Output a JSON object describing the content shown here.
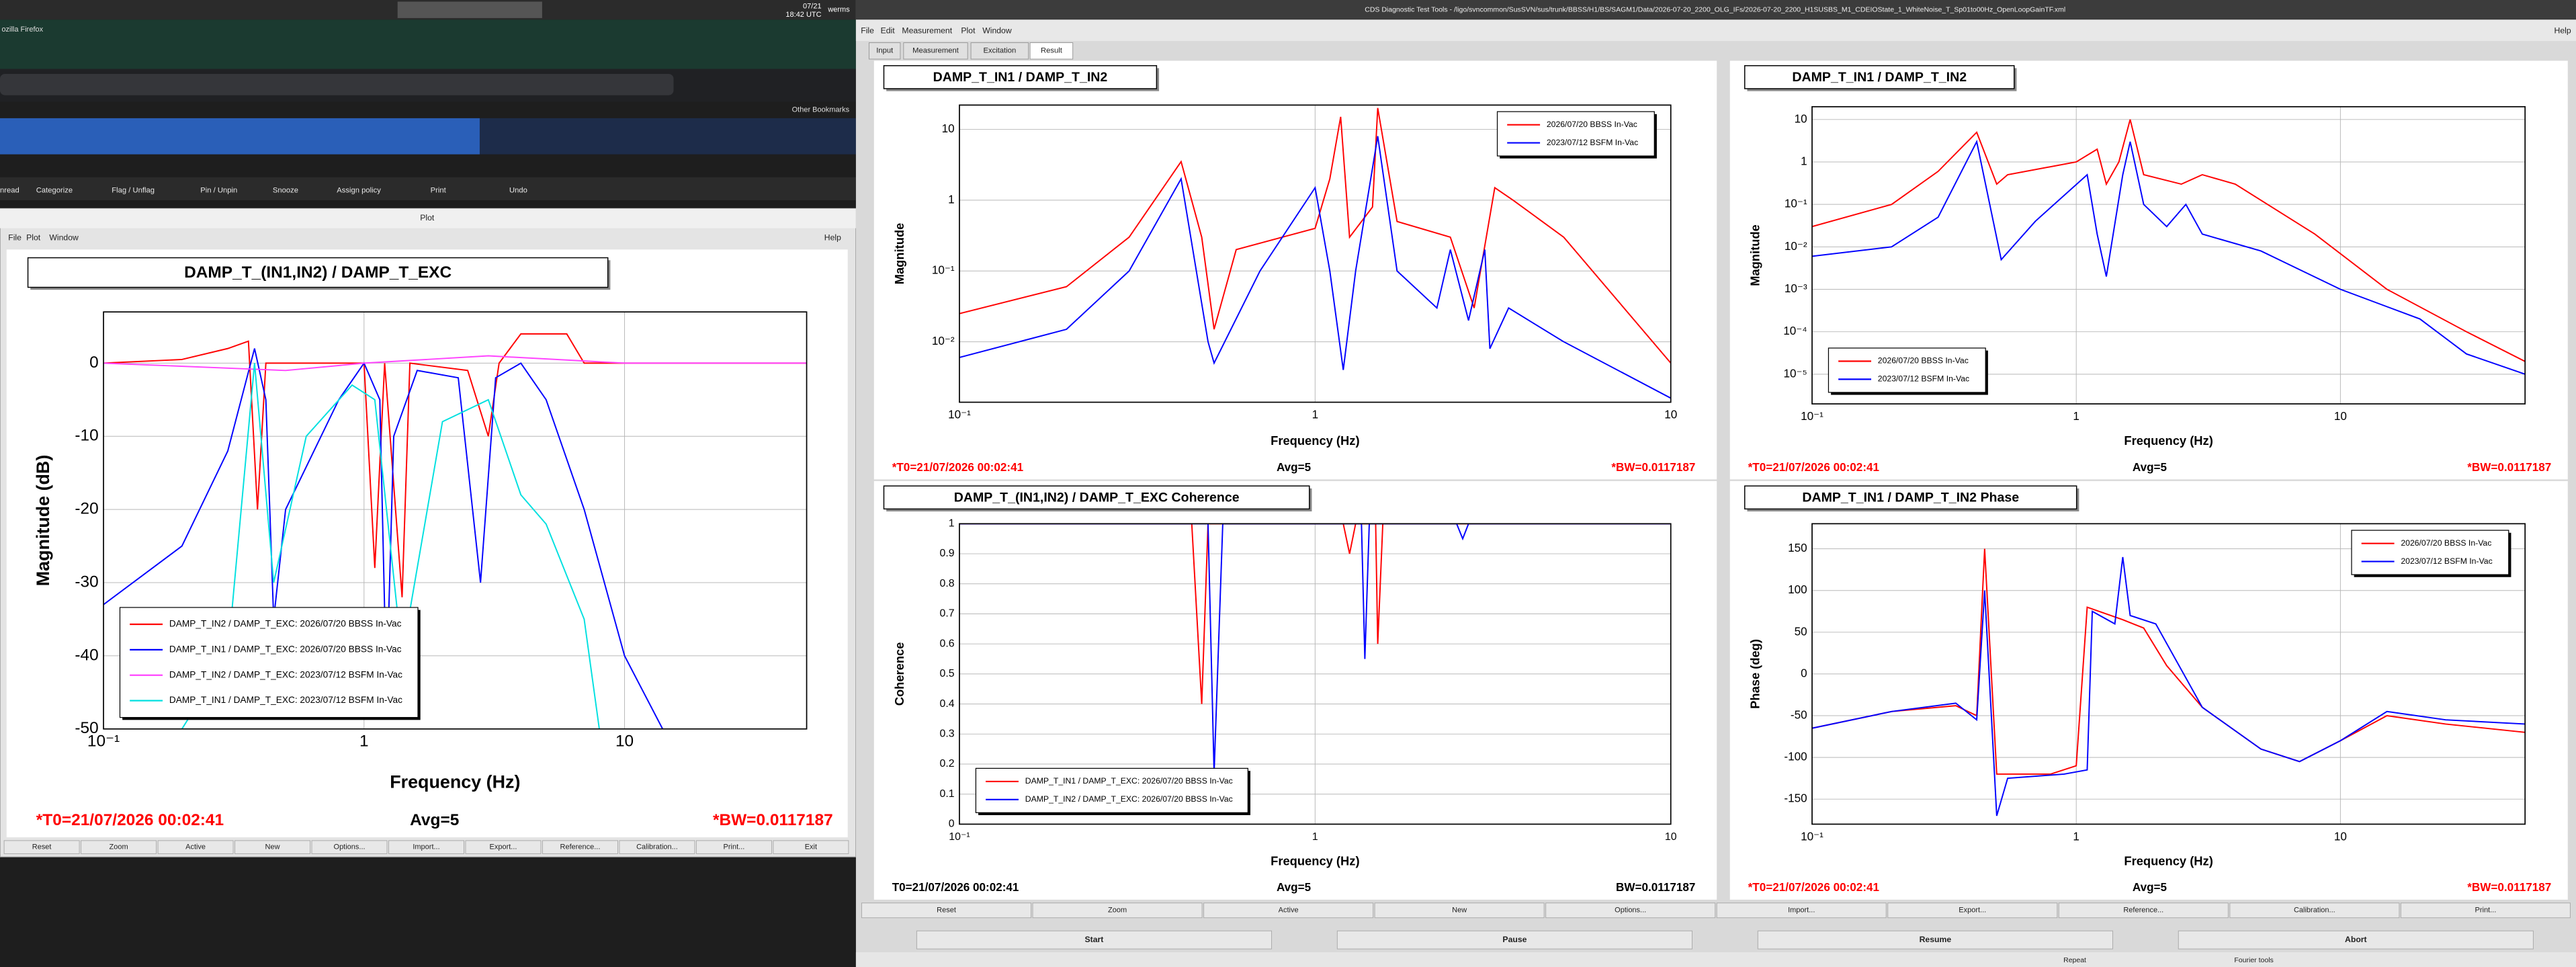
{
  "taskbar": {
    "date": "07/21",
    "time": "18:42 UTC",
    "user": "werms"
  },
  "browser": {
    "title": "ozilla Firefox",
    "bookmarks": "Other Bookmarks",
    "toolbar": [
      "nread",
      "Categorize",
      "Flag / Unflag",
      "Pin / Unpin",
      "Snooze",
      "Assign policy",
      "Print",
      "Undo"
    ]
  },
  "plot_window": {
    "title": "Plot",
    "menu": [
      "File",
      "Plot",
      "Window"
    ],
    "help": "Help",
    "buttons": [
      "Reset",
      "Zoom",
      "Active",
      "New",
      "Options...",
      "Import...",
      "Export...",
      "Reference...",
      "Calibration...",
      "Print...",
      "Exit"
    ]
  },
  "main_window": {
    "title": "CDS Diagnostic Test Tools - /ligo/svncommon/SusSVN/sus/trunk/BBSS/H1/BS/SAGM1/Data/2026-07-20_2200_OLG_IFs/2026-07-20_2200_H1SUSBS_M1_CDEIOState_1_WhiteNoise_T_Sp01to00Hz_OpenLoopGainTF.xml",
    "menu": [
      "File",
      "Edit",
      "Measurement",
      "Plot",
      "Window"
    ],
    "help": "Help",
    "tabs": [
      "Input",
      "Measurement",
      "Excitation",
      "Result"
    ],
    "buttons": [
      "Reset",
      "Zoom",
      "Active",
      "New",
      "Options...",
      "Import...",
      "Export...",
      "Reference...",
      "Calibration...",
      "Print..."
    ],
    "controls": [
      "Start",
      "Pause",
      "Resume",
      "Abort"
    ],
    "status": [
      "Repeat",
      "Fourier tools"
    ]
  },
  "chart_data": [
    {
      "type": "line",
      "title": "DAMP_T_(IN1,IN2) / DAMP_T_EXC",
      "xlabel": "Frequency (Hz)",
      "ylabel": "Magnitude (dB)",
      "log_x": true,
      "log_y": false,
      "xlim": [
        0.1,
        50
      ],
      "ylim": [
        -50,
        7
      ],
      "xticks": [
        {
          "value": 0.1,
          "label": "10⁻¹"
        },
        1,
        10
      ],
      "yticks": [
        0,
        -10,
        -20,
        -30,
        -40,
        -50
      ],
      "grid": true,
      "legend": "lower left",
      "series": [
        {
          "name": "DAMP_T_IN2 / DAMP_T_EXC: 2026/07/20 BBSS In-Vac",
          "color": "#ff0000",
          "x": [
            0.1,
            0.2,
            0.3,
            0.36,
            0.39,
            0.42,
            0.6,
            1.0,
            1.1,
            1.2,
            1.4,
            1.5,
            2.5,
            3.0,
            3.3,
            4,
            6,
            7,
            50
          ],
          "values": [
            0,
            0.5,
            2,
            3,
            -20,
            0,
            0,
            0,
            -28,
            0,
            -32,
            0,
            -1,
            -10,
            0,
            4,
            4,
            0,
            0
          ]
        },
        {
          "name": "DAMP_T_IN1 / DAMP_T_EXC: 2026/07/20 BBSS In-Vac",
          "color": "#0000ff",
          "x": [
            0.1,
            0.2,
            0.3,
            0.38,
            0.42,
            0.45,
            0.5,
            0.8,
            1.0,
            1.15,
            1.22,
            1.3,
            1.6,
            2.3,
            2.8,
            3.2,
            4,
            5,
            7,
            10,
            14
          ],
          "values": [
            -33,
            -25,
            -12,
            2,
            -5,
            -35,
            -20,
            -5,
            0,
            -5,
            -45,
            -10,
            -1,
            -2,
            -30,
            -2,
            0,
            -5,
            -20,
            -40,
            -50
          ]
        },
        {
          "name": "DAMP_T_IN2 / DAMP_T_EXC: 2023/07/12 BSFM In-Vac",
          "color": "#ff44ff",
          "x": [
            0.1,
            0.5,
            1,
            3,
            10,
            50
          ],
          "values": [
            0,
            -1,
            0,
            1,
            0,
            0
          ]
        },
        {
          "name": "DAMP_T_IN1 / DAMP_T_EXC: 2023/07/12 BSFM In-Vac",
          "color": "#00e0e0",
          "x": [
            0.2,
            0.3,
            0.38,
            0.45,
            0.6,
            0.9,
            1.1,
            1.4,
            2,
            3,
            4,
            5,
            7,
            8
          ],
          "values": [
            -50,
            -40,
            0,
            -30,
            -10,
            -3,
            -5,
            -40,
            -8,
            -5,
            -18,
            -22,
            -35,
            -50
          ]
        }
      ],
      "footer": {
        "t0": "*T0=21/07/2026 00:02:41",
        "avg": "Avg=5",
        "bw": "*BW=0.0117187"
      },
      "footer_color": "#ff0000"
    },
    {
      "type": "line",
      "title": "DAMP_T_IN1 / DAMP_T_IN2",
      "xlabel": "Frequency (Hz)",
      "ylabel": "Magnitude",
      "log_x": true,
      "log_y": true,
      "xlim": [
        0.1,
        10
      ],
      "ylim": [
        0.0014,
        22
      ],
      "xticks": [
        {
          "value": 0.1,
          "label": "10⁻¹"
        },
        1,
        10
      ],
      "yticks": [
        {
          "value": 0.01,
          "label": "10⁻²"
        },
        {
          "value": 0.1,
          "label": "10⁻¹"
        },
        1,
        10
      ],
      "grid": true,
      "legend": "upper right",
      "series": [
        {
          "name": "2026/07/20 BBSS In-Vac",
          "color": "#ff0000",
          "x": [
            0.1,
            0.2,
            0.3,
            0.42,
            0.48,
            0.52,
            0.6,
            1,
            1.1,
            1.18,
            1.25,
            1.45,
            1.5,
            1.7,
            2.4,
            2.8,
            3.2,
            3.6,
            5,
            10
          ],
          "values": [
            0.025,
            0.06,
            0.3,
            3.5,
            0.3,
            0.015,
            0.2,
            0.4,
            2,
            15,
            0.3,
            0.8,
            20,
            0.5,
            0.3,
            0.03,
            1.5,
            1,
            0.3,
            0.005
          ]
        },
        {
          "name": "2023/07/12 BSFM In-Vac",
          "color": "#0000ff",
          "x": [
            0.1,
            0.2,
            0.3,
            0.42,
            0.5,
            0.52,
            0.7,
            1.0,
            1.1,
            1.2,
            1.3,
            1.5,
            1.7,
            2.2,
            2.4,
            2.7,
            3,
            3.1,
            3.5,
            5,
            10
          ],
          "values": [
            0.006,
            0.015,
            0.1,
            2,
            0.01,
            0.005,
            0.1,
            1.5,
            0.1,
            0.004,
            0.1,
            8,
            0.1,
            0.03,
            0.2,
            0.02,
            0.2,
            0.008,
            0.03,
            0.01,
            0.0016
          ]
        }
      ],
      "footer": {
        "t0": "*T0=21/07/2026 00:02:41",
        "avg": "Avg=5",
        "bw": "*BW=0.0117187"
      },
      "footer_color": "#ff0000"
    },
    {
      "type": "line",
      "title": "DAMP_T_IN1 / DAMP_T_IN2",
      "xlabel": "Frequency (Hz)",
      "ylabel": "Magnitude",
      "log_x": true,
      "log_y": true,
      "xlim": [
        0.1,
        50
      ],
      "ylim": [
        2e-06,
        20
      ],
      "xticks": [
        {
          "value": 0.1,
          "label": "10⁻¹"
        },
        1,
        10
      ],
      "yticks": [
        {
          "value": 1e-05,
          "label": "10⁻⁵"
        },
        {
          "value": 0.0001,
          "label": "10⁻⁴"
        },
        {
          "value": 0.001,
          "label": "10⁻³"
        },
        {
          "value": 0.01,
          "label": "10⁻²"
        },
        {
          "value": 0.1,
          "label": "10⁻¹"
        },
        1,
        10
      ],
      "grid": true,
      "legend": "lower left",
      "series": [
        {
          "name": "2026/07/20 BBSS In-Vac",
          "color": "#ff0000",
          "x": [
            0.1,
            0.2,
            0.3,
            0.42,
            0.5,
            0.55,
            1,
            1.2,
            1.3,
            1.45,
            1.6,
            1.8,
            2.5,
            3,
            4,
            8,
            15,
            30,
            50
          ],
          "values": [
            0.03,
            0.1,
            0.6,
            5,
            0.3,
            0.5,
            1,
            2,
            0.3,
            1,
            10,
            0.5,
            0.3,
            0.5,
            0.3,
            0.02,
            0.001,
            0.0001,
            2e-05
          ]
        },
        {
          "name": "2023/07/12 BSFM In-Vac",
          "color": "#0000ff",
          "x": [
            0.1,
            0.2,
            0.3,
            0.42,
            0.52,
            0.7,
            1.1,
            1.2,
            1.3,
            1.5,
            1.6,
            1.8,
            2.2,
            2.6,
            3,
            5,
            10,
            20,
            30,
            50
          ],
          "values": [
            0.006,
            0.01,
            0.05,
            3,
            0.005,
            0.04,
            0.5,
            0.02,
            0.002,
            0.5,
            3,
            0.1,
            0.03,
            0.1,
            0.02,
            0.008,
            0.001,
            0.0002,
            3e-05,
            1e-05
          ]
        }
      ],
      "footer": {
        "t0": "*T0=21/07/2026 00:02:41",
        "avg": "Avg=5",
        "bw": "*BW=0.0117187"
      },
      "footer_color": "#ff0000"
    },
    {
      "type": "line",
      "title": "DAMP_T_(IN1,IN2) / DAMP_T_EXC Coherence",
      "xlabel": "Frequency (Hz)",
      "ylabel": "Coherence",
      "log_x": true,
      "log_y": false,
      "xlim": [
        0.1,
        10
      ],
      "ylim": [
        0,
        1
      ],
      "xticks": [
        {
          "value": 0.1,
          "label": "10⁻¹"
        },
        1,
        10
      ],
      "yticks": [
        0,
        0.1,
        0.2,
        0.3,
        0.4,
        0.5,
        0.6,
        0.7,
        0.8,
        0.9,
        1
      ],
      "grid": true,
      "legend": "lower left",
      "series": [
        {
          "name": "DAMP_T_IN1 / DAMP_T_EXC: 2026/07/20 BBSS In-Vac",
          "color": "#ff0000",
          "x": [
            0.1,
            0.45,
            0.48,
            0.5,
            1.2,
            1.25,
            1.3,
            1.48,
            1.5,
            1.55,
            10
          ],
          "values": [
            1,
            1,
            0.4,
            1,
            1,
            0.9,
            1,
            1,
            0.6,
            1,
            1
          ]
        },
        {
          "name": "DAMP_T_IN2 / DAMP_T_EXC: 2026/07/20 BBSS In-Vac",
          "color": "#0000ff",
          "x": [
            0.1,
            0.5,
            0.52,
            0.55,
            1.35,
            1.38,
            1.42,
            2.5,
            2.6,
            2.7,
            10
          ],
          "values": [
            1,
            1,
            0.17,
            1,
            1,
            0.55,
            1,
            1,
            0.95,
            1,
            1
          ]
        }
      ],
      "footer": {
        "t0": "T0=21/07/2026 00:02:41",
        "avg": "Avg=5",
        "bw": "BW=0.0117187"
      },
      "footer_color": "#000000"
    },
    {
      "type": "line",
      "title": "DAMP_T_IN1 / DAMP_T_IN2 Phase",
      "xlabel": "Frequency (Hz)",
      "ylabel": "Phase (deg)",
      "log_x": true,
      "log_y": false,
      "xlim": [
        0.1,
        50
      ],
      "ylim": [
        -180,
        180
      ],
      "xticks": [
        {
          "value": 0.1,
          "label": "10⁻¹"
        },
        1,
        10
      ],
      "yticks": [
        -150,
        -100,
        -50,
        0,
        50,
        100,
        150
      ],
      "grid": true,
      "legend": "upper right",
      "series": [
        {
          "name": "2026/07/20 BBSS In-Vac",
          "color": "#ff0000",
          "x": [
            0.1,
            0.2,
            0.35,
            0.42,
            0.45,
            0.5,
            0.8,
            1.0,
            1.1,
            1.5,
            1.8,
            2.2,
            3,
            5,
            7,
            10,
            15,
            25,
            50
          ],
          "values": [
            -65,
            -45,
            -38,
            -50,
            150,
            -120,
            -120,
            -110,
            80,
            65,
            55,
            10,
            -40,
            -90,
            -105,
            -80,
            -50,
            -60,
            -70
          ]
        },
        {
          "name": "2023/07/12 BSFM In-Vac",
          "color": "#0000ff",
          "x": [
            0.1,
            0.2,
            0.35,
            0.42,
            0.45,
            0.5,
            0.55,
            0.9,
            1.1,
            1.15,
            1.4,
            1.5,
            1.6,
            2.0,
            3,
            5,
            7,
            10,
            15,
            25,
            50
          ],
          "values": [
            -65,
            -45,
            -35,
            -55,
            100,
            -170,
            -125,
            -120,
            -115,
            75,
            60,
            140,
            70,
            60,
            -40,
            -90,
            -105,
            -80,
            -45,
            -55,
            -60
          ]
        }
      ],
      "footer": {
        "t0": "*T0=21/07/2026 00:02:41",
        "avg": "Avg=5",
        "bw": "*BW=0.0117187"
      },
      "footer_color": "#ff0000"
    }
  ]
}
